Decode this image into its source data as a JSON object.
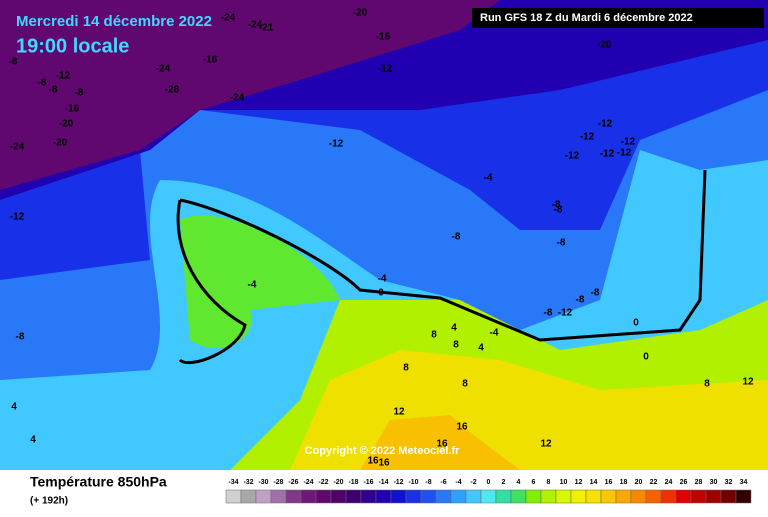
{
  "header": {
    "date": "Mercredi 14 décembre 2022",
    "time": "19:00 locale",
    "run": "Run GFS 18 Z du Mardi 6 décembre 2022"
  },
  "footer": {
    "title": "Température 850hPa",
    "lead": "(+ 192h)",
    "copyright": "Copyright © 2022 Meteociel.fr"
  },
  "scale": {
    "ticks": [
      -34,
      -32,
      -30,
      -28,
      -26,
      -24,
      -22,
      -20,
      -18,
      -16,
      -14,
      -12,
      -10,
      -8,
      -6,
      -4,
      -2,
      0,
      2,
      4,
      6,
      8,
      10,
      12,
      14,
      16,
      18,
      20,
      22,
      24,
      26,
      28,
      30,
      32,
      34
    ],
    "colors": [
      "#d0d0d0",
      "#a8a8a8",
      "#c0a0c8",
      "#a070a8",
      "#803888",
      "#701878",
      "#600870",
      "#500068",
      "#3c0070",
      "#300090",
      "#2000b0",
      "#1010d0",
      "#1830e8",
      "#2050f0",
      "#2878f8",
      "#30a0ff",
      "#40c8ff",
      "#50e8f0",
      "#30e0a0",
      "#40e060",
      "#80f000",
      "#b0f000",
      "#d8f800",
      "#f0f000",
      "#f8e000",
      "#f8c800",
      "#f8a800",
      "#f88800",
      "#f86000",
      "#f03000",
      "#e00000",
      "#c00000",
      "#a00000",
      "#700000",
      "#300000"
    ]
  },
  "contour_labels": [
    -20,
    -24,
    -24,
    -21,
    -16,
    -20,
    -16,
    -24,
    -28,
    -24,
    -12,
    -8,
    -8,
    -12,
    -8,
    -8,
    -16,
    -20,
    -24,
    -20,
    -12,
    -12,
    -12,
    -12,
    -12,
    -12,
    -12,
    -4,
    -8,
    -8,
    -12,
    -8,
    -8,
    -4,
    -4,
    0,
    -8,
    -8,
    -8,
    -12,
    -8,
    4,
    8,
    8,
    -4,
    4,
    0,
    0,
    4,
    8,
    8,
    12,
    8,
    12,
    4,
    12,
    16,
    16,
    16,
    16
  ]
}
